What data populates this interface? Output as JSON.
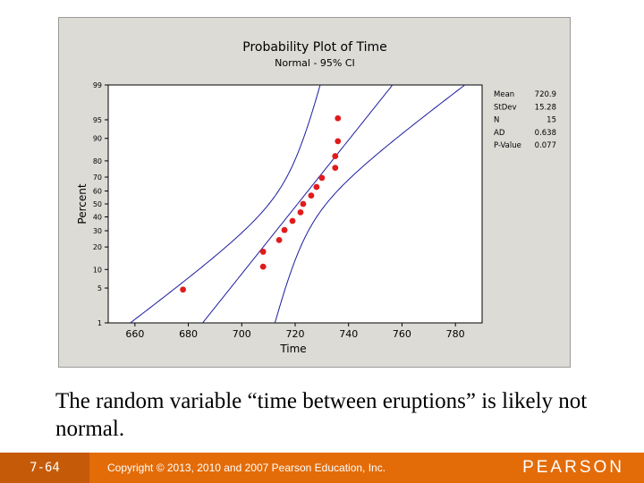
{
  "chart_data": {
    "type": "scatter",
    "title": "Probability Plot of Time",
    "subtitle": "Normal - 95% CI",
    "xlabel": "Time",
    "ylabel": "Percent",
    "xlim": [
      650,
      790
    ],
    "x_ticks": [
      660,
      680,
      700,
      720,
      740,
      760,
      780
    ],
    "y_ticks": [
      1,
      5,
      10,
      20,
      30,
      40,
      50,
      60,
      70,
      80,
      90,
      95,
      99
    ],
    "points": [
      {
        "x": 678,
        "y": 4.7
      },
      {
        "x": 708,
        "y": 11.0
      },
      {
        "x": 708,
        "y": 17.5
      },
      {
        "x": 714,
        "y": 24.0
      },
      {
        "x": 716,
        "y": 30.5
      },
      {
        "x": 719,
        "y": 37.0
      },
      {
        "x": 722,
        "y": 43.5
      },
      {
        "x": 723,
        "y": 50.0
      },
      {
        "x": 726,
        "y": 56.5
      },
      {
        "x": 728,
        "y": 63.0
      },
      {
        "x": 730,
        "y": 69.5
      },
      {
        "x": 735,
        "y": 76.0
      },
      {
        "x": 735,
        "y": 82.5
      },
      {
        "x": 736,
        "y": 89.0
      },
      {
        "x": 736,
        "y": 95.3
      }
    ],
    "fit": {
      "mean": 720.9,
      "stdev": 15.28
    },
    "ci_halfwidth_sigmas": 0.7,
    "stats": [
      {
        "label": "Mean",
        "value": "720.9"
      },
      {
        "label": "StDev",
        "value": "15.28"
      },
      {
        "label": "N",
        "value": "15"
      },
      {
        "label": "AD",
        "value": "0.638"
      },
      {
        "label": "P-Value",
        "value": "0.077"
      }
    ],
    "colors": {
      "points": "#e01b1b",
      "lines": "#1c1c9e",
      "plot_bg": "#ffffff",
      "frame_bg": "#dcdbd6"
    }
  },
  "caption": "The random variable “time between eruptions” is likely not normal.",
  "footer": {
    "slide_number": "7-64",
    "copyright": "Copyright © 2013, 2010 and 2007 Pearson Education, Inc.",
    "logo": "PEARSON"
  }
}
